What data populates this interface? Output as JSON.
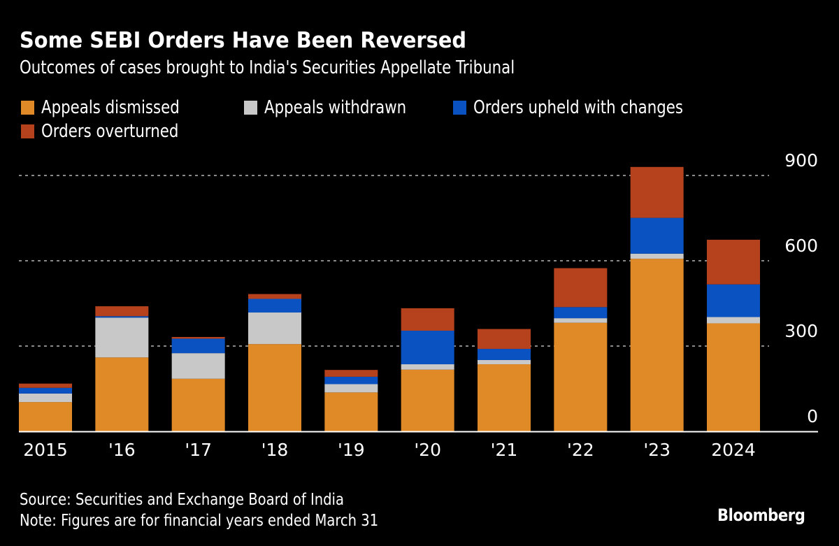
{
  "header": {
    "title": "Some SEBI Orders Have Been Reversed",
    "subtitle": "Outcomes of cases brought to India's Securities Appellate Tribunal"
  },
  "footer": {
    "source": "Source: Securities and Exchange Board of India",
    "note": "Note: Figures are for financial years ended March 31",
    "brand": "Bloomberg"
  },
  "colors": {
    "background": "#000000",
    "appeals_dismissed": "#e08a27",
    "appeals_withdrawn": "#c8c8c8",
    "orders_upheld_with_changes": "#0a52c2",
    "orders_overturned": "#b5411d",
    "gridline": "#8a8a8a",
    "axis": "#ffffff"
  },
  "chart_data": {
    "type": "bar",
    "stacked": true,
    "title": "Some SEBI Orders Have Been Reversed",
    "subtitle": "Outcomes of cases brought to India's Securities Appellate Tribunal",
    "xlabel": "",
    "ylabel": "",
    "categories": [
      "2015",
      "'16",
      "'17",
      "'18",
      "'19",
      "'20",
      "'21",
      "'22",
      "'23",
      "2024"
    ],
    "series": [
      {
        "name": "Appeals dismissed",
        "color": "#e08a27",
        "values": [
          103,
          260,
          185,
          307,
          137,
          217,
          236,
          382,
          607,
          380
        ]
      },
      {
        "name": "Appeals withdrawn",
        "color": "#c8c8c8",
        "values": [
          30,
          140,
          90,
          111,
          29,
          19,
          15,
          16,
          18,
          22
        ]
      },
      {
        "name": "Orders upheld with changes",
        "color": "#0a52c2",
        "values": [
          20,
          5,
          51,
          48,
          26,
          118,
          39,
          39,
          126,
          115
        ]
      },
      {
        "name": "Orders overturned",
        "color": "#b5411d",
        "values": [
          15,
          35,
          6,
          17,
          24,
          79,
          70,
          137,
          179,
          157
        ]
      }
    ],
    "ylim": [
      0,
      930
    ],
    "yticks": [
      0,
      300,
      600,
      900
    ],
    "ytick_labels": [
      "0",
      "300",
      "600",
      "900"
    ],
    "y_axis_position": "right",
    "grid": true,
    "grid_style": "dotted",
    "legend_position": "top-left"
  }
}
